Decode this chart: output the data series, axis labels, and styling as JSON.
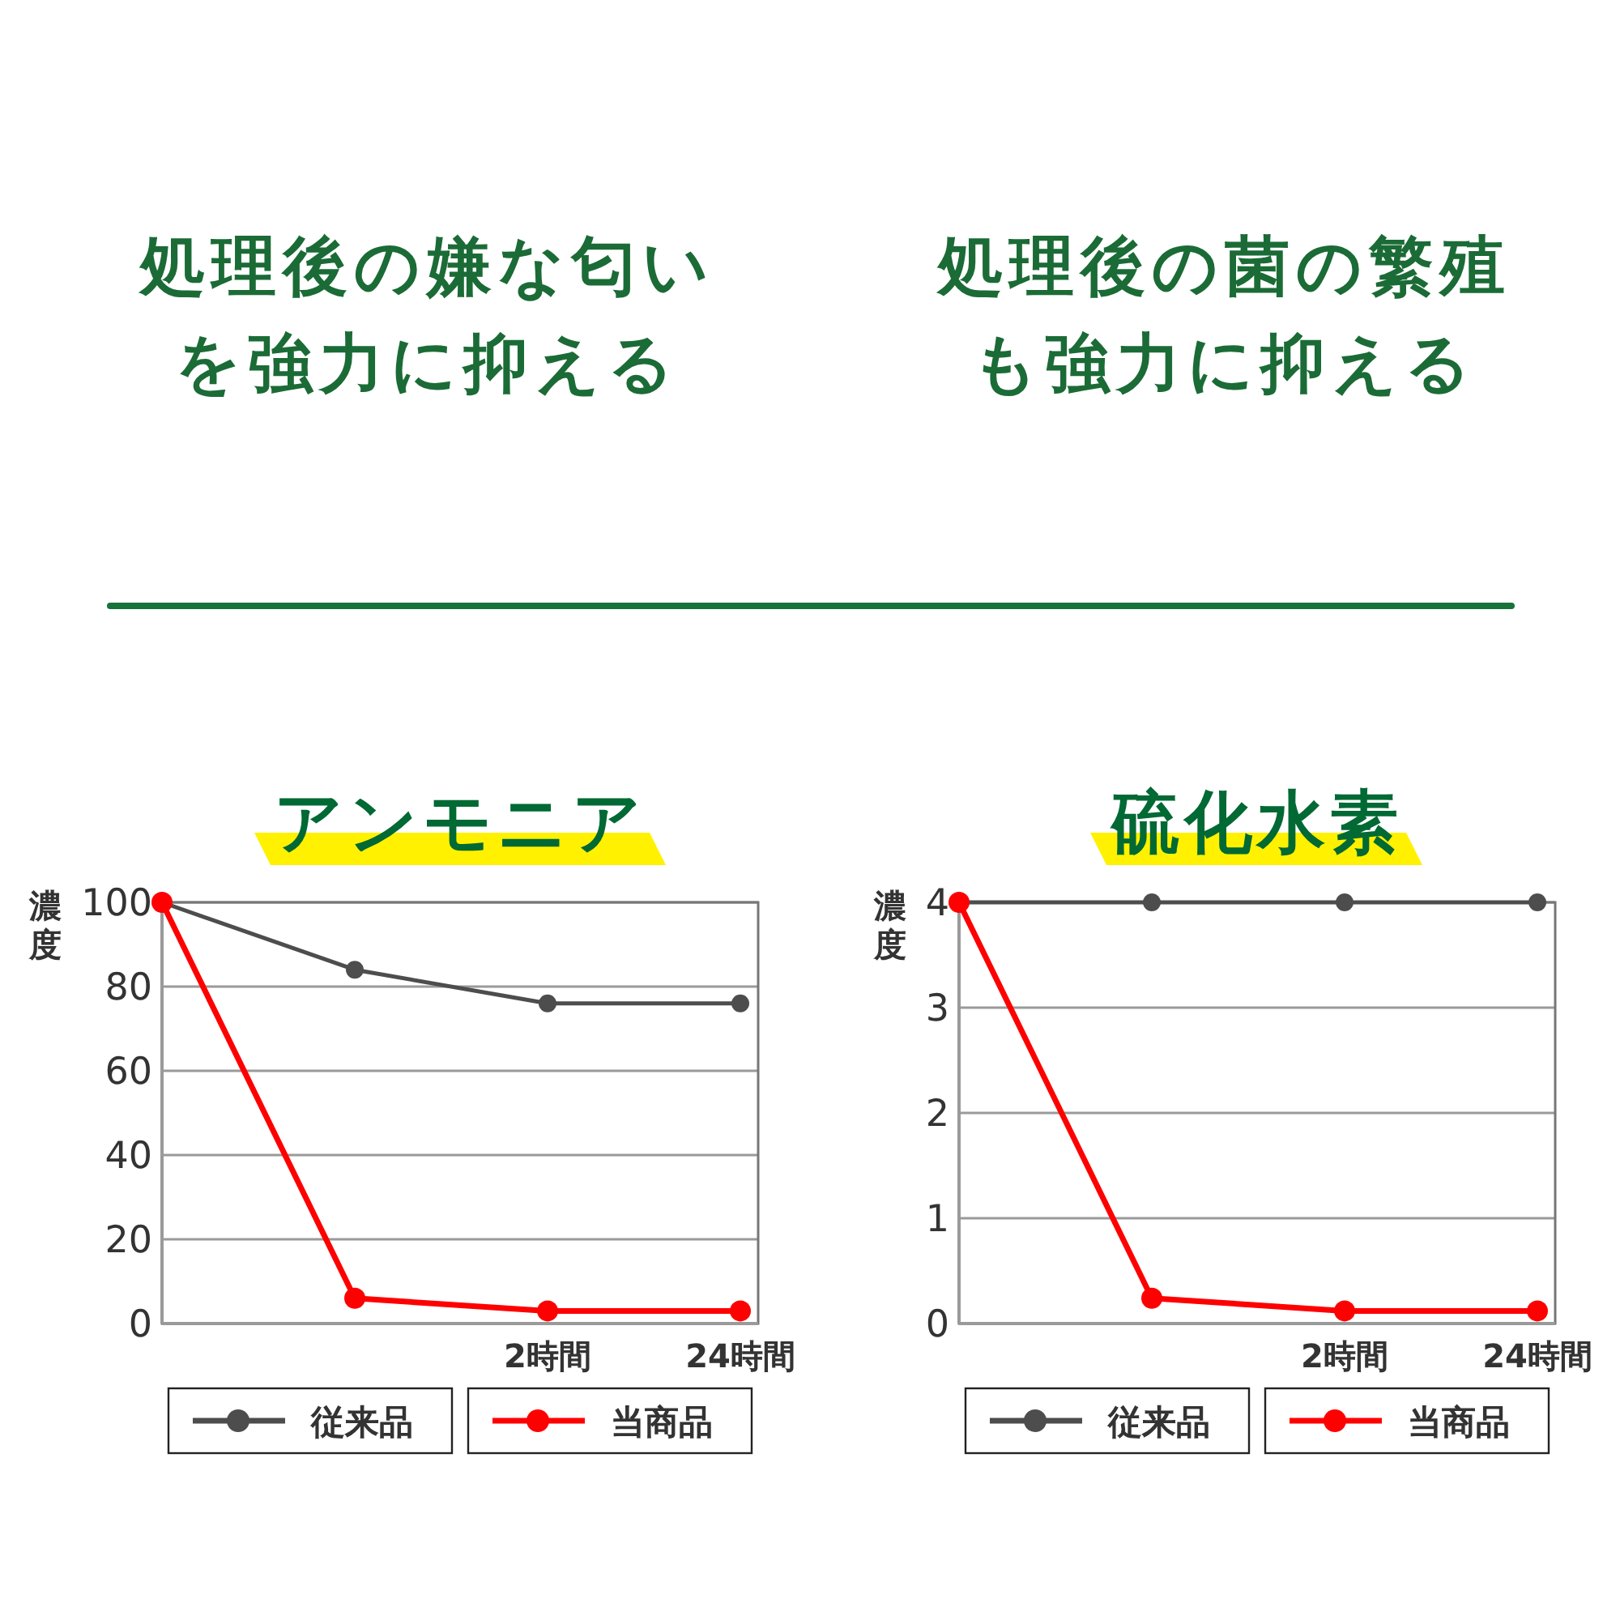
{
  "chart_data": [
    {
      "type": "line",
      "title": "アンモニア",
      "annotations": [
        "処理後の嫌な匂いを強力に抑える"
      ],
      "ylabel": "濃度",
      "categories": [
        null,
        null,
        "2時間",
        "24時間"
      ],
      "series": [
        {
          "name": "従来品",
          "color": "#4d4d4d",
          "values": [
            100,
            84,
            76,
            76
          ]
        },
        {
          "name": "当商品",
          "color": "#ff0000",
          "values": [
            100,
            6,
            3,
            3
          ]
        }
      ],
      "ylim": [
        0,
        100
      ],
      "yticks": [
        0,
        20,
        40,
        60,
        80,
        100
      ],
      "grid": "y",
      "legend": "bottom",
      "marker": "circle",
      "line_style": "solid"
    },
    {
      "type": "line",
      "title": "硫化水素",
      "annotations": [
        "処理後の菌の繁殖も強力に抑える"
      ],
      "ylabel": "濃度",
      "categories": [
        null,
        null,
        "2時間",
        "24時間"
      ],
      "series": [
        {
          "name": "従来品",
          "color": "#4d4d4d",
          "values": [
            4,
            4,
            4,
            4
          ]
        },
        {
          "name": "当商品",
          "color": "#ff0000",
          "values": [
            4,
            0.24,
            0.12,
            0.12
          ]
        }
      ],
      "ylim": [
        0,
        4
      ],
      "yticks": [
        0,
        1,
        2,
        3,
        4
      ],
      "grid": "y",
      "legend": "bottom",
      "marker": "circle",
      "line_style": "solid"
    }
  ]
}
